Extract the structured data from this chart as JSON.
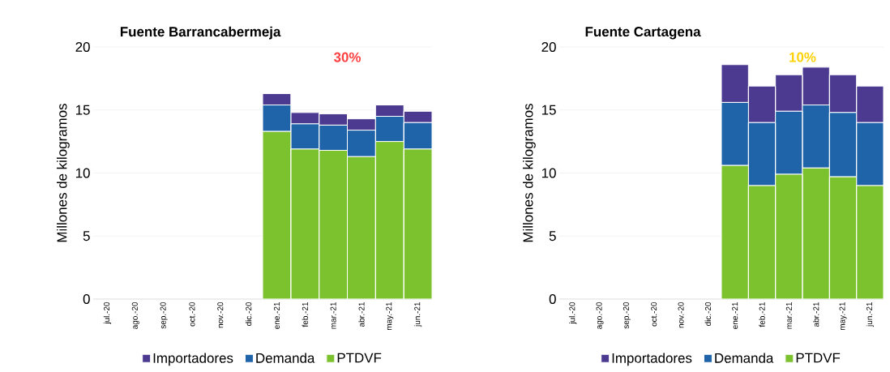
{
  "chart_data": [
    {
      "type": "bar",
      "stacked": true,
      "title": "Fuente Barrancabermeja",
      "ylabel": "Millones de kilogramos",
      "categories": [
        "jul.-20",
        "ago.-20",
        "sep.-20",
        "oct.-20",
        "nov.-20",
        "dic.-20",
        "ene.-21",
        "feb.-21",
        "mar.-21",
        "abr.-21",
        "may.-21",
        "jun.-21"
      ],
      "series": [
        {
          "name": "PTDVF",
          "color": "#7cc22e",
          "values": [
            null,
            null,
            null,
            null,
            null,
            null,
            13.3,
            11.9,
            11.8,
            11.3,
            12.5,
            11.9
          ]
        },
        {
          "name": "Demanda",
          "color": "#1f64a8",
          "values": [
            null,
            null,
            null,
            null,
            null,
            null,
            2.1,
            2.0,
            2.0,
            2.1,
            2.0,
            2.1
          ]
        },
        {
          "name": "Importadores",
          "color": "#4b3a8f",
          "values": [
            null,
            null,
            null,
            null,
            null,
            null,
            0.9,
            0.9,
            0.9,
            0.9,
            0.9,
            0.9
          ]
        }
      ],
      "ylim": [
        0,
        20
      ],
      "yticks": [
        0,
        5,
        10,
        15,
        20
      ],
      "grid": "y",
      "legend": "bottom",
      "annotations": [
        "30%"
      ]
    },
    {
      "type": "bar",
      "stacked": true,
      "title": "Fuente Cartagena",
      "ylabel": "Millones de kilogramos",
      "categories": [
        "jul.-20",
        "ago.-20",
        "sep.-20",
        "oct.-20",
        "nov.-20",
        "dic.-20",
        "ene.-21",
        "feb.-21",
        "mar.-21",
        "abr.-21",
        "may.-21",
        "jun.-21"
      ],
      "series": [
        {
          "name": "PTDVF",
          "color": "#7cc22e",
          "values": [
            null,
            null,
            null,
            null,
            null,
            null,
            10.6,
            9.0,
            9.9,
            10.4,
            9.7,
            9.0
          ]
        },
        {
          "name": "Demanda",
          "color": "#1f64a8",
          "values": [
            null,
            null,
            null,
            null,
            null,
            null,
            5.0,
            5.0,
            5.0,
            5.0,
            5.1,
            5.0
          ]
        },
        {
          "name": "Importadores",
          "color": "#4b3a8f",
          "values": [
            null,
            null,
            null,
            null,
            null,
            null,
            3.0,
            2.9,
            2.9,
            3.0,
            3.0,
            2.9
          ]
        }
      ],
      "ylim": [
        0,
        20
      ],
      "yticks": [
        0,
        5,
        10,
        15,
        20
      ],
      "grid": "y",
      "legend": "bottom",
      "annotations": [
        "10%"
      ]
    }
  ]
}
